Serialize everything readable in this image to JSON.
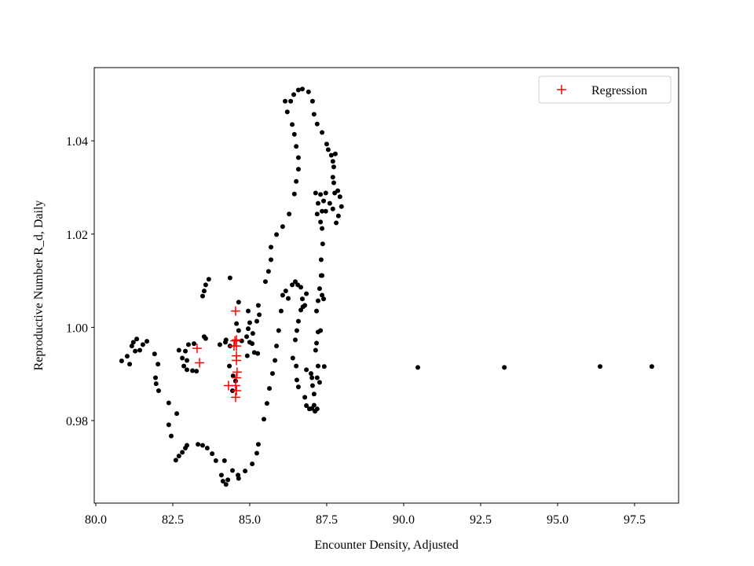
{
  "chart_data": {
    "type": "scatter",
    "x_label": "Encounter Density, Adjusted",
    "y_label": "Reproductive Number R_d, Daily",
    "xlim": [
      79.95,
      98.93
    ],
    "ylim": [
      0.9623,
      1.0557
    ],
    "xticks": [
      {
        "value": 80,
        "label": "80.0"
      },
      82.5,
      {
        "value": 85,
        "label": "85.0"
      },
      87.5,
      {
        "value": 90,
        "label": "90.0"
      },
      92.5,
      {
        "value": 95,
        "label": "95.0"
      },
      97.5
    ],
    "yticks": [
      0.98,
      {
        "value": 1,
        "label": "1.00"
      },
      1.02,
      1.04
    ],
    "grid": false,
    "legend": "upper right",
    "series": [
      {
        "color": "#000000",
        "marker": "dot",
        "x": [
          80.84,
          81.02,
          81.1,
          81.17,
          81.22,
          81.28,
          81.33,
          81.43,
          81.53,
          81.66,
          81.91,
          82.02,
          81.94,
          81.96,
          82.04,
          82.37,
          82.37,
          82.45,
          82.63,
          82.6,
          82.7,
          82.81,
          82.91,
          82.96,
          83.32,
          83.47,
          83.62,
          83.78,
          83.9,
          84.08,
          84.18,
          84.13,
          84.23,
          84.29,
          84.44,
          84.62,
          84.64,
          84.85,
          85.08,
          85.23,
          85.28,
          85.46,
          85.56,
          85.64,
          85.74,
          85.82,
          85.87,
          85.94,
          86.02,
          86.07,
          86.17,
          86.25,
          86.38,
          86.48,
          86.56,
          86.66,
          86.71,
          86.79,
          86.84,
          86.73,
          86.66,
          86.58,
          86.53,
          86.48,
          86.4,
          86.51,
          86.53,
          86.58,
          86.79,
          86.84,
          86.94,
          87.02,
          87.09,
          87.09,
          87.04,
          87.02,
          87.22,
          87.14,
          87.22,
          87.17,
          87.22,
          87.27,
          87.32,
          87.32,
          87.37,
          87.35,
          87.3,
          87.19,
          87.22,
          87.14,
          87.3,
          87.35,
          87.47,
          87.4,
          87.47,
          87.6,
          87.7,
          87.81,
          87.88,
          87.98,
          87.93,
          87.86,
          87.73,
          87.73,
          87.65,
          87.55,
          87.5,
          87.35,
          87.19,
          87.09,
          87.04,
          86.91,
          86.71,
          86.58,
          86.43,
          86.33,
          86.15,
          86.22,
          86.38,
          86.45,
          86.51,
          86.58,
          86.58,
          86.51,
          86.45,
          86.28,
          86.07,
          85.87,
          85.69,
          85.69,
          85.61,
          85.51,
          85.31,
          85.23,
          85.1,
          85.08,
          84.92,
          84.74,
          84.64,
          84.57,
          84.36,
          83.67,
          83.57,
          83.52,
          83.47,
          83.57,
          83.52,
          83.19,
          83.01,
          82.91,
          82.7,
          82.81,
          82.96,
          82.86,
          82.96,
          83.14,
          83.27,
          84.03,
          84.23,
          84.36,
          84.34,
          84.46,
          84.54,
          84.44,
          84.21,
          84.64,
          84.95,
          85.0,
          84.95,
          84.9,
          85.0,
          85.15,
          85.26,
          85.28,
          86.84,
          86.99,
          87.19,
          87.27,
          87.42,
          87.19,
          87.12,
          87.17,
          87.35,
          87.4,
          87.3,
          87.35,
          87.7,
          87.7,
          87.76,
          87.78,
          90.46,
          93.27,
          96.38,
          98.06
        ],
        "values": [
          0.9928,
          0.9938,
          0.9921,
          0.996,
          0.9968,
          0.9949,
          0.9975,
          0.9951,
          0.9963,
          0.997,
          0.9943,
          0.9921,
          0.9892,
          0.9879,
          0.9864,
          0.9838,
          0.9791,
          0.9767,
          0.9815,
          0.9715,
          0.9724,
          0.9732,
          0.9741,
          0.9747,
          0.9749,
          0.9747,
          0.9741,
          0.9729,
          0.9714,
          0.9683,
          0.9714,
          0.967,
          0.9663,
          0.9673,
          0.9693,
          0.9683,
          0.9676,
          0.9692,
          0.9707,
          0.973,
          0.9749,
          0.9803,
          0.9837,
          0.9869,
          0.9901,
          0.9929,
          0.996,
          0.9993,
          1.0035,
          1.0069,
          1.0078,
          1.0062,
          1.0091,
          1.0098,
          1.0091,
          1.0086,
          1.0061,
          1.0047,
          1.0072,
          1.0044,
          1.0037,
          1.0013,
          0.9993,
          0.9973,
          0.9934,
          0.9917,
          0.9887,
          0.9872,
          0.985,
          0.9832,
          0.9825,
          0.9826,
          0.9833,
          0.9857,
          0.9875,
          0.9892,
          0.9917,
          0.9951,
          0.999,
          1.0035,
          1.0057,
          1.0083,
          1.0111,
          1.0145,
          1.0179,
          1.0212,
          1.0226,
          1.0243,
          1.0266,
          1.0288,
          1.0285,
          1.0249,
          1.0249,
          1.0271,
          1.0288,
          1.0266,
          1.0254,
          1.0224,
          1.0239,
          1.0259,
          1.028,
          1.0293,
          1.031,
          1.0344,
          1.0369,
          1.0381,
          1.0393,
          1.0418,
          1.0436,
          1.0457,
          1.0485,
          1.0505,
          1.0511,
          1.0509,
          1.0499,
          1.0485,
          1.0485,
          1.0462,
          1.0435,
          1.0414,
          1.0388,
          1.0364,
          1.0339,
          1.0313,
          1.0286,
          1.0243,
          1.0216,
          1.0199,
          1.0172,
          1.0145,
          1.012,
          1.0098,
          1.0027,
          1.0013,
          0.9987,
          0.9965,
          0.9939,
          0.9971,
          0.9993,
          1.0008,
          1.0106,
          1.0103,
          1.0091,
          1.0078,
          1.0067,
          0.9976,
          0.998,
          0.9965,
          0.9963,
          0.9949,
          0.9951,
          0.9934,
          0.9929,
          0.9917,
          0.9909,
          0.9907,
          0.9906,
          0.9963,
          0.9973,
          0.996,
          0.9917,
          0.9896,
          0.9885,
          0.9864,
          0.9968,
          1.0054,
          1.0035,
          1.001,
          0.9997,
          0.998,
          0.9968,
          0.9946,
          0.9944,
          1.0047,
          0.9909,
          0.9901,
          0.9892,
          0.9882,
          0.9916,
          0.9825,
          0.982,
          0.9966,
          1.0069,
          1.0061,
          0.9993,
          1.0111,
          1.0356,
          1.0322,
          1.0288,
          1.0372,
          0.9914,
          0.9914,
          0.9916,
          0.9916
        ]
      },
      {
        "name": "Regression",
        "color": "#ff0000",
        "marker": "plus",
        "x": [
          83.29,
          83.37,
          84.54,
          84.57,
          84.57,
          84.57,
          84.57,
          84.59,
          84.57,
          84.54,
          84.57,
          84.31,
          84.54,
          84.52,
          84.49
        ],
        "values": [
          0.9955,
          0.9924,
          1.0035,
          0.9973,
          0.996,
          0.9939,
          0.9929,
          0.9904,
          0.9892,
          0.9875,
          0.9864,
          0.9875,
          0.985,
          0.9971,
          0.996
        ]
      }
    ]
  }
}
